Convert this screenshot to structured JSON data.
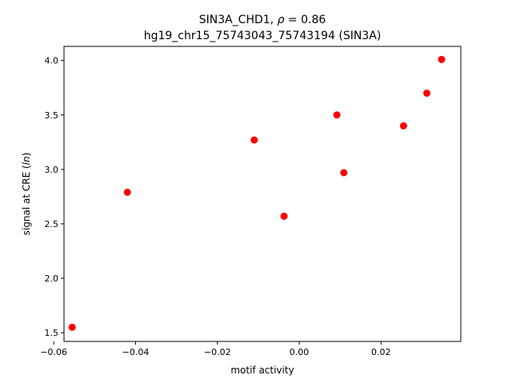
{
  "chart_data": {
    "type": "scatter",
    "title": {
      "line1_prefix": "SIN3A_CHD1, ",
      "rho_symbol": "ρ",
      "rho_suffix": " = 0.86",
      "line2": "hg19_chr15_75743043_75743194 (SIN3A)"
    },
    "xlabel": "motif activity",
    "ylabel": {
      "prefix": "signal at CRE (",
      "italic": "ln",
      "suffix": ")"
    },
    "xlim": [
      -0.0575,
      0.0395
    ],
    "ylim": [
      1.42,
      4.13
    ],
    "xticks": [
      {
        "value": -0.06,
        "label": "−0.06"
      },
      {
        "value": -0.04,
        "label": "−0.04"
      },
      {
        "value": -0.02,
        "label": "−0.02"
      },
      {
        "value": 0.0,
        "label": "0.00"
      },
      {
        "value": 0.02,
        "label": "0.02"
      }
    ],
    "yticks": [
      {
        "value": 1.5,
        "label": "1.5"
      },
      {
        "value": 2.0,
        "label": "2.0"
      },
      {
        "value": 2.5,
        "label": "2.5"
      },
      {
        "value": 3.0,
        "label": "3.0"
      },
      {
        "value": 3.5,
        "label": "3.5"
      },
      {
        "value": 4.0,
        "label": "4.0"
      }
    ],
    "point_color": "#ff0000",
    "points": [
      {
        "x": -0.0555,
        "y": 1.55
      },
      {
        "x": -0.042,
        "y": 2.79
      },
      {
        "x": -0.011,
        "y": 3.27
      },
      {
        "x": -0.0037,
        "y": 2.57
      },
      {
        "x": 0.0092,
        "y": 3.5
      },
      {
        "x": 0.0109,
        "y": 2.97
      },
      {
        "x": 0.0255,
        "y": 3.4
      },
      {
        "x": 0.0312,
        "y": 3.7
      },
      {
        "x": 0.0348,
        "y": 4.01
      }
    ],
    "grid": false,
    "legend": "none"
  }
}
